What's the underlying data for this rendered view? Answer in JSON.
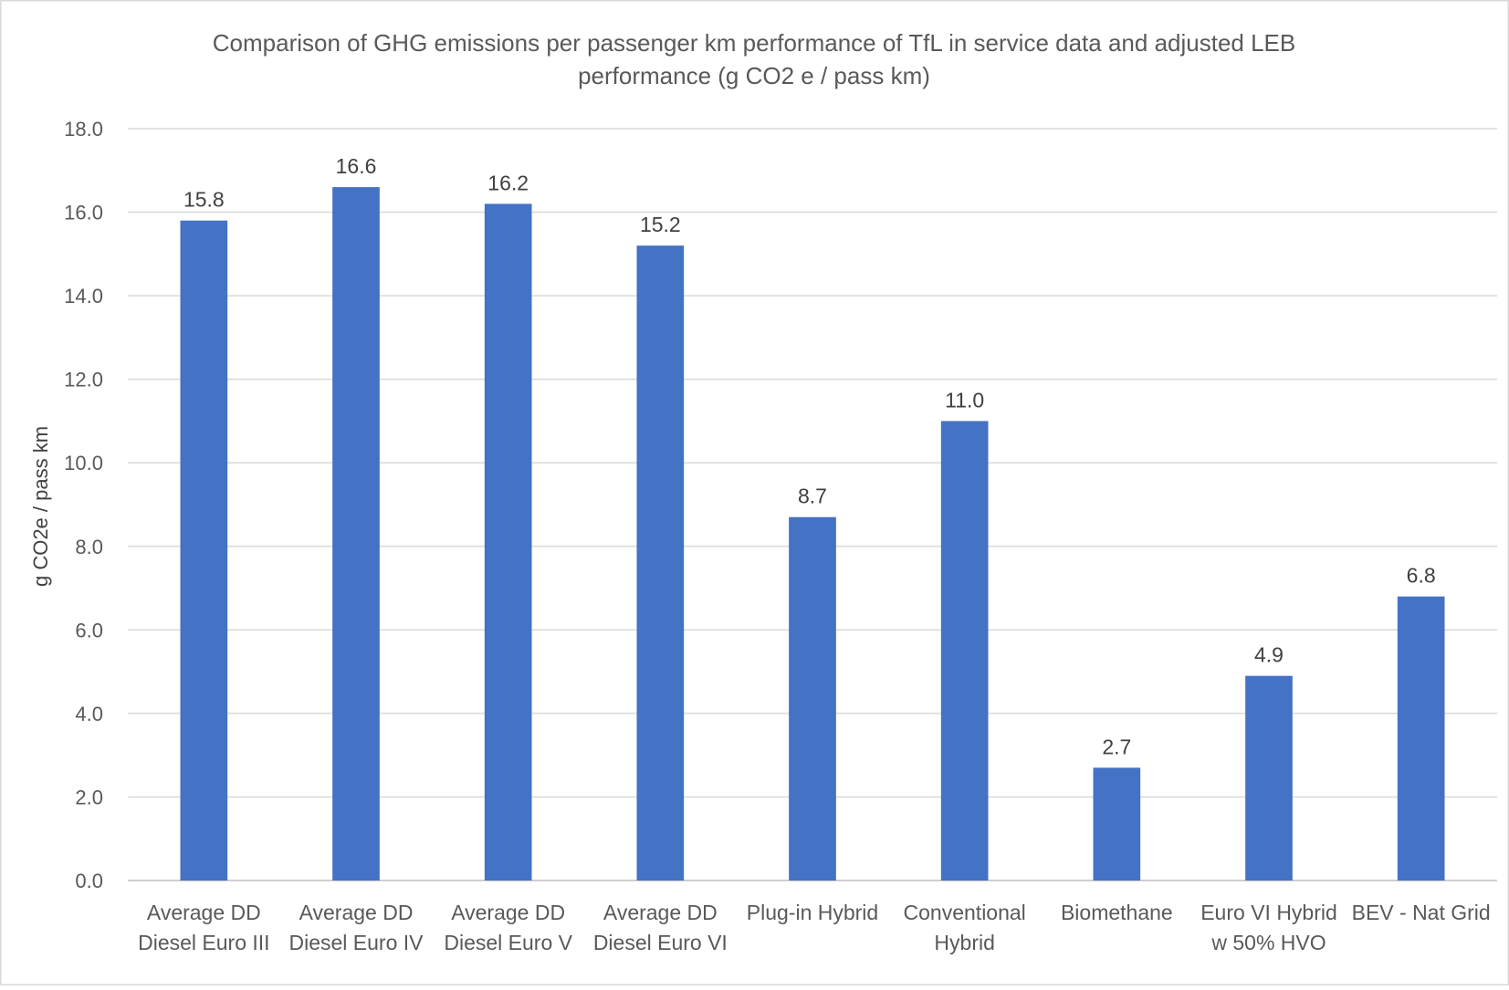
{
  "chart_data": {
    "type": "bar",
    "title": "Comparison of GHG emissions per passenger km performance of TfL in service data and adjusted LEB performance (g CO2 e / pass km)",
    "title_lines": [
      "Comparison of GHG emissions per passenger km performance of TfL in service data and adjusted LEB",
      "performance (g CO2 e / pass km)"
    ],
    "ylabel": "g CO2e / pass km",
    "xlabel": "",
    "ylim": [
      0,
      18
    ],
    "yticks": [
      "0.0",
      "2.0",
      "4.0",
      "6.0",
      "8.0",
      "10.0",
      "12.0",
      "14.0",
      "16.0",
      "18.0"
    ],
    "grid": true,
    "bar_color": "#4472c4",
    "categories": [
      [
        "Average DD",
        "Diesel Euro III"
      ],
      [
        "Average DD",
        "Diesel Euro IV"
      ],
      [
        "Average DD",
        "Diesel Euro V"
      ],
      [
        "Average DD",
        "Diesel Euro VI"
      ],
      [
        "Plug-in Hybrid"
      ],
      [
        "Conventional",
        "Hybrid"
      ],
      [
        "Biomethane"
      ],
      [
        "Euro VI Hybrid",
        "w 50% HVO"
      ],
      [
        "BEV - Nat Grid"
      ]
    ],
    "values": [
      15.8,
      16.6,
      16.2,
      15.2,
      8.7,
      11.0,
      2.7,
      4.9,
      6.8
    ],
    "data_labels": [
      "15.8",
      "16.6",
      "16.2",
      "15.2",
      "8.7",
      "11.0",
      "2.7",
      "4.9",
      "6.8"
    ]
  }
}
